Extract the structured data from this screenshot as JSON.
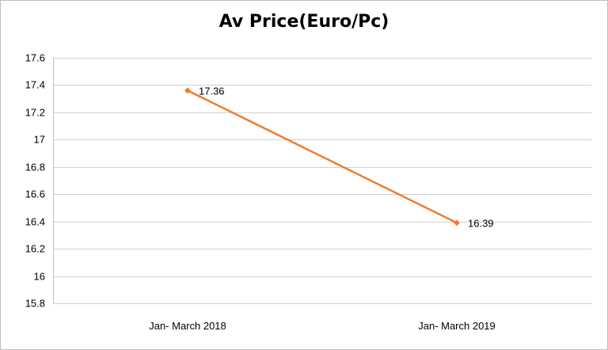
{
  "chart_data": {
    "type": "line",
    "title": "Av Price(Euro/Pc)",
    "xlabel": "",
    "ylabel": "",
    "categories": [
      "Jan- March 2018",
      "Jan- March 2019"
    ],
    "series": [
      {
        "values": [
          17.36,
          16.39
        ],
        "labels": [
          "17.36",
          "16.39"
        ],
        "color": "#ed7d31"
      }
    ],
    "ylim": [
      15.8,
      17.6
    ],
    "yticks": [
      15.8,
      16,
      16.2,
      16.4,
      16.6,
      16.8,
      17,
      17.2,
      17.4,
      17.6
    ],
    "grid": true,
    "legend": "none"
  }
}
